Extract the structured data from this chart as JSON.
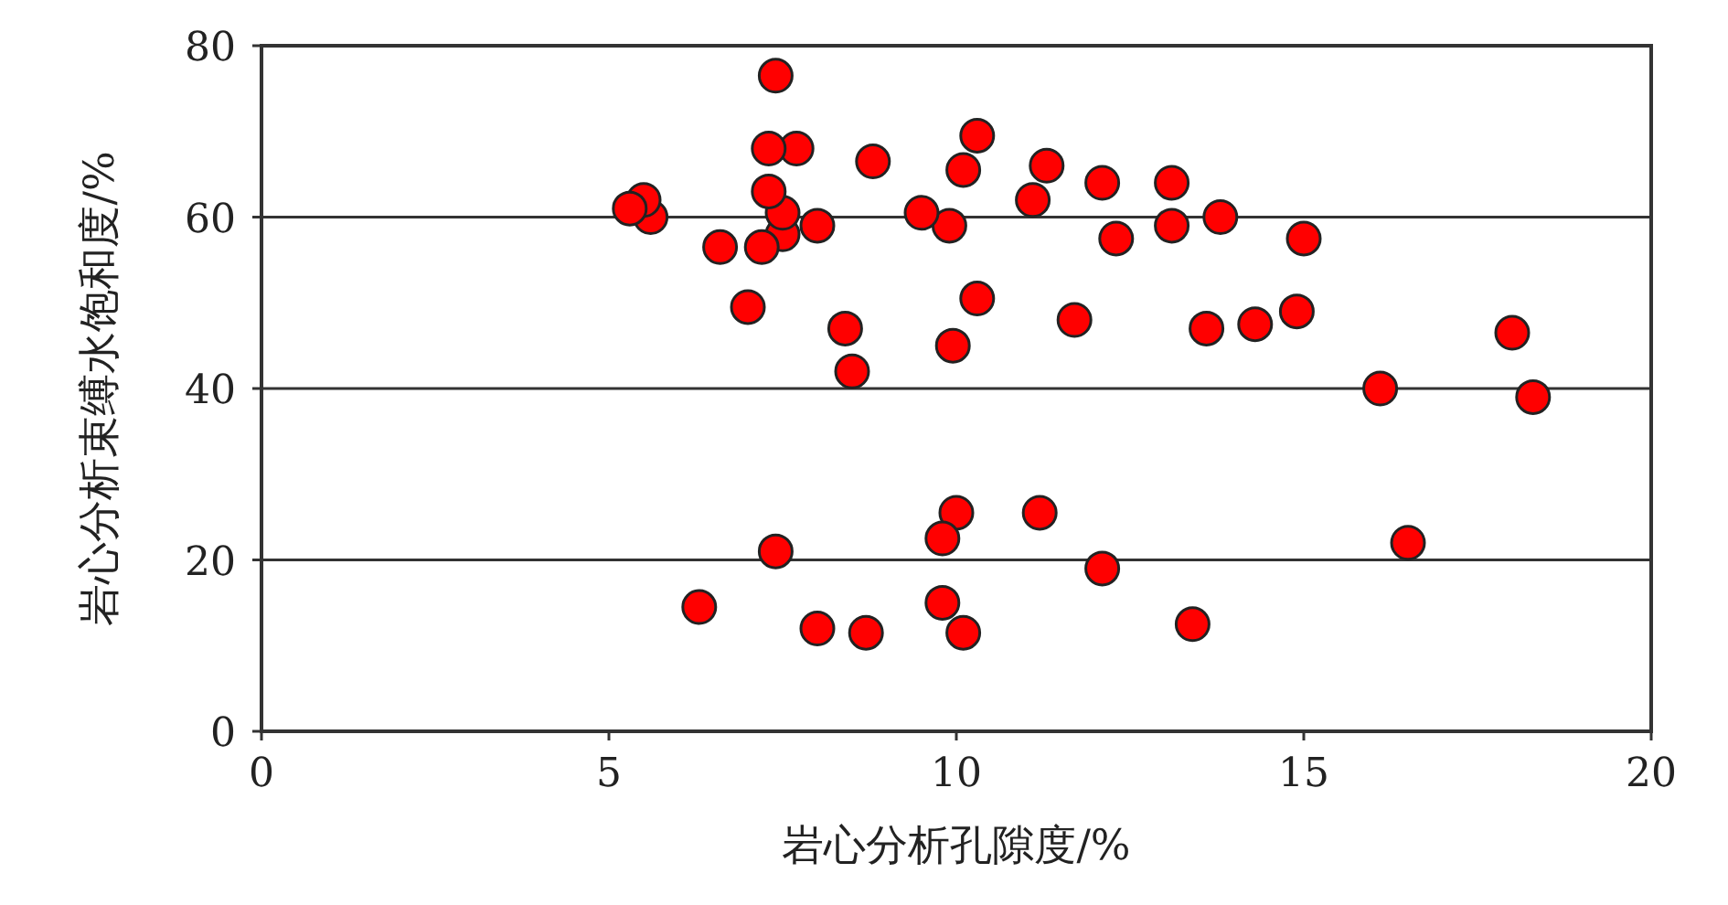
{
  "chart_data": {
    "type": "scatter",
    "xlabel": "岩心分析孔隙度/%",
    "ylabel": "岩心分析束缚水饱和度/%",
    "x": [
      5.3,
      5.5,
      5.6,
      6.6,
      7.0,
      7.2,
      7.3,
      7.3,
      7.4,
      7.5,
      7.5,
      7.7,
      8.0,
      8.4,
      8.5,
      8.8,
      9.5,
      9.9,
      9.95,
      10.1,
      10.3,
      10.3,
      11.1,
      11.3,
      11.7,
      12.1,
      12.3,
      13.1,
      13.1,
      13.6,
      13.8,
      14.3,
      14.9,
      15.0,
      16.1,
      18.0,
      18.3,
      6.3,
      7.4,
      8.0,
      8.7,
      9.8,
      9.8,
      10.0,
      10.1,
      11.2,
      12.1,
      13.4,
      16.5
    ],
    "values": [
      61,
      62,
      60,
      56.5,
      49.5,
      56.5,
      63,
      68,
      76.5,
      60.5,
      58,
      68,
      59,
      47,
      42,
      66.5,
      60.5,
      59,
      45,
      65.5,
      69.5,
      50.5,
      62,
      66,
      48,
      64,
      57.5,
      64,
      59,
      47,
      60,
      47.5,
      49,
      57.5,
      40,
      46.5,
      39,
      14.5,
      21,
      12,
      11.5,
      22.5,
      15,
      25.5,
      11.5,
      25.5,
      19,
      12.5,
      22
    ],
    "color": "#ff0000",
    "marker": "circle",
    "xlim": [
      0,
      20
    ],
    "ylim": [
      0,
      80
    ],
    "xticks": [
      0,
      5,
      10,
      15,
      20
    ],
    "yticks": [
      0,
      20,
      40,
      60,
      80
    ],
    "grid": "y"
  }
}
